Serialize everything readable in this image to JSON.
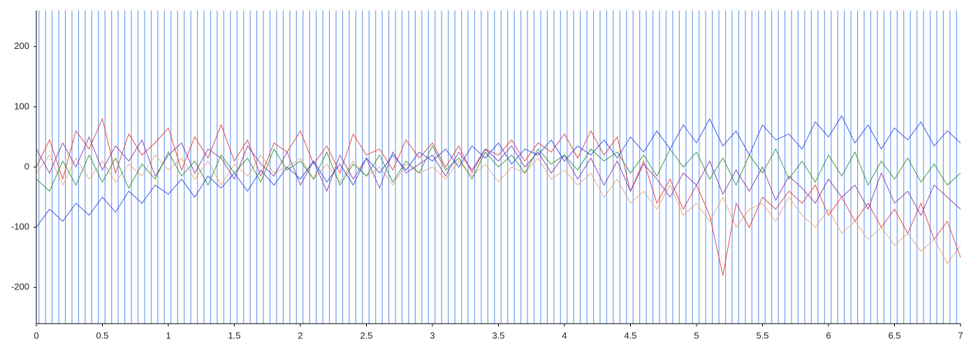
{
  "chart_data": {
    "type": "line",
    "xlim": [
      0,
      7
    ],
    "ylim": [
      -260,
      260
    ],
    "xticks": [
      0,
      0.5,
      1,
      1.5,
      2,
      2.5,
      3,
      3.5,
      4,
      4.5,
      5,
      5.5,
      6,
      6.5,
      7
    ],
    "yticks": [
      -200,
      -100,
      0,
      100,
      200
    ],
    "marker_color": "#6f9ff0",
    "markers": [
      0.02,
      0.07,
      0.12,
      0.17,
      0.22,
      0.27,
      0.32,
      0.37,
      0.42,
      0.47,
      0.52,
      0.57,
      0.62,
      0.67,
      0.72,
      0.77,
      0.82,
      0.87,
      0.92,
      0.97,
      1.02,
      1.07,
      1.12,
      1.17,
      1.22,
      1.27,
      1.32,
      1.37,
      1.42,
      1.47,
      1.52,
      1.57,
      1.62,
      1.67,
      1.72,
      1.77,
      1.82,
      1.87,
      1.92,
      1.97,
      2.02,
      2.07,
      2.12,
      2.17,
      2.22,
      2.27,
      2.32,
      2.37,
      2.42,
      2.47,
      2.52,
      2.57,
      2.62,
      2.67,
      2.72,
      2.77,
      2.82,
      2.87,
      2.92,
      2.97,
      3.02,
      3.07,
      3.12,
      3.17,
      3.22,
      3.27,
      3.32,
      3.37,
      3.42,
      3.47,
      3.52,
      3.57,
      3.62,
      3.67,
      3.72,
      3.77,
      3.82,
      3.87,
      3.92,
      3.97,
      4.02,
      4.07,
      4.12,
      4.17,
      4.22,
      4.27,
      4.32,
      4.37,
      4.42,
      4.47,
      4.52,
      4.57,
      4.62,
      4.67,
      4.72,
      4.77,
      4.82,
      4.87,
      4.92,
      4.97,
      5.02,
      5.07,
      5.12,
      5.17,
      5.22,
      5.27,
      5.32,
      5.37,
      5.42,
      5.47,
      5.52,
      5.57,
      5.62,
      5.67,
      5.72,
      5.77,
      5.82,
      5.87,
      5.92,
      5.97,
      6.02,
      6.07,
      6.12,
      6.17,
      6.22,
      6.27,
      6.32,
      6.37,
      6.42,
      6.47,
      6.52,
      6.57,
      6.62,
      6.67,
      6.72,
      6.77,
      6.82,
      6.87,
      6.92,
      6.97
    ],
    "x": [
      0,
      0.1,
      0.2,
      0.3,
      0.4,
      0.5,
      0.6,
      0.7,
      0.8,
      0.9,
      1,
      1.1,
      1.2,
      1.3,
      1.4,
      1.5,
      1.6,
      1.7,
      1.8,
      1.9,
      2,
      2.1,
      2.2,
      2.3,
      2.4,
      2.5,
      2.6,
      2.7,
      2.8,
      2.9,
      3,
      3.1,
      3.2,
      3.3,
      3.4,
      3.5,
      3.6,
      3.7,
      3.8,
      3.9,
      4,
      4.1,
      4.2,
      4.3,
      4.4,
      4.5,
      4.6,
      4.7,
      4.8,
      4.9,
      5,
      5.1,
      5.2,
      5.3,
      5.4,
      5.5,
      5.6,
      5.7,
      5.8,
      5.9,
      6,
      6.1,
      6.2,
      6.3,
      6.4,
      6.5,
      6.6,
      6.7,
      6.8,
      6.9,
      7
    ],
    "series": [
      {
        "color": "#e8a070",
        "values": [
          -10,
          20,
          -30,
          15,
          -20,
          10,
          -25,
          5,
          -15,
          20,
          -5,
          15,
          -20,
          10,
          -30,
          5,
          -15,
          20,
          -10,
          0,
          15,
          -20,
          5,
          -25,
          10,
          -15,
          0,
          -30,
          5,
          -10,
          0,
          -20,
          10,
          -15,
          5,
          -25,
          0,
          -10,
          15,
          -20,
          -5,
          -30,
          -10,
          -50,
          -20,
          -60,
          -40,
          -70,
          -30,
          -80,
          -60,
          -90,
          -50,
          -100,
          -70,
          -60,
          -90,
          -50,
          -80,
          -100,
          -70,
          -110,
          -90,
          -120,
          -100,
          -130,
          -110,
          -140,
          -120,
          -160,
          -130
        ]
      },
      {
        "color": "#e03030",
        "values": [
          0,
          45,
          -20,
          60,
          30,
          80,
          -10,
          55,
          20,
          40,
          65,
          -5,
          50,
          15,
          70,
          10,
          45,
          -15,
          40,
          25,
          60,
          5,
          35,
          -10,
          55,
          20,
          30,
          -5,
          45,
          15,
          40,
          0,
          35,
          -10,
          30,
          20,
          45,
          10,
          40,
          25,
          55,
          15,
          60,
          20,
          50,
          -40,
          10,
          -60,
          -20,
          -70,
          -30,
          -80,
          -180,
          -60,
          -100,
          -50,
          -70,
          -40,
          -60,
          -30,
          -80,
          -50,
          -90,
          -60,
          -100,
          -70,
          -110,
          -60,
          -120,
          -90,
          -150
        ]
      },
      {
        "color": "#8030a0",
        "values": [
          30,
          -10,
          40,
          0,
          50,
          -5,
          35,
          10,
          45,
          -15,
          20,
          40,
          -10,
          30,
          15,
          -20,
          35,
          5,
          -15,
          25,
          -30,
          10,
          -40,
          20,
          -20,
          15,
          -35,
          25,
          -10,
          5,
          20,
          -15,
          25,
          -5,
          30,
          10,
          35,
          0,
          25,
          -10,
          20,
          -20,
          15,
          -30,
          10,
          -40,
          5,
          -20,
          -50,
          -10,
          -30,
          10,
          -45,
          -5,
          -40,
          0,
          -55,
          -15,
          -35,
          -60,
          -20,
          -50,
          -30,
          -70,
          -10,
          -60,
          -40,
          -80,
          -30,
          -50,
          -70
        ]
      },
      {
        "color": "#2a8a2a",
        "values": [
          -20,
          -40,
          10,
          -30,
          20,
          -25,
          15,
          -35,
          5,
          -20,
          25,
          -15,
          10,
          -30,
          20,
          -10,
          15,
          -25,
          30,
          -5,
          10,
          -20,
          25,
          -30,
          5,
          -15,
          20,
          -25,
          10,
          -10,
          35,
          -5,
          15,
          -20,
          25,
          0,
          20,
          -10,
          30,
          5,
          20,
          -5,
          30,
          10,
          25,
          -10,
          20,
          -15,
          30,
          0,
          25,
          -20,
          15,
          -30,
          20,
          -10,
          30,
          -20,
          10,
          -25,
          20,
          -15,
          25,
          -30,
          10,
          -20,
          15,
          -25,
          5,
          -30,
          -10
        ]
      },
      {
        "color": "#2040e0",
        "values": [
          -100,
          -70,
          -90,
          -60,
          -80,
          -50,
          -75,
          -40,
          -60,
          -30,
          -45,
          -20,
          -50,
          -15,
          -35,
          -10,
          -40,
          -5,
          -30,
          0,
          -20,
          10,
          -25,
          5,
          -30,
          15,
          -10,
          20,
          -5,
          25,
          10,
          30,
          0,
          35,
          15,
          40,
          5,
          30,
          20,
          45,
          10,
          35,
          20,
          45,
          15,
          50,
          25,
          60,
          30,
          70,
          40,
          80,
          35,
          60,
          20,
          70,
          45,
          55,
          30,
          75,
          50,
          85,
          40,
          70,
          30,
          65,
          45,
          75,
          35,
          60,
          40
        ]
      }
    ]
  }
}
